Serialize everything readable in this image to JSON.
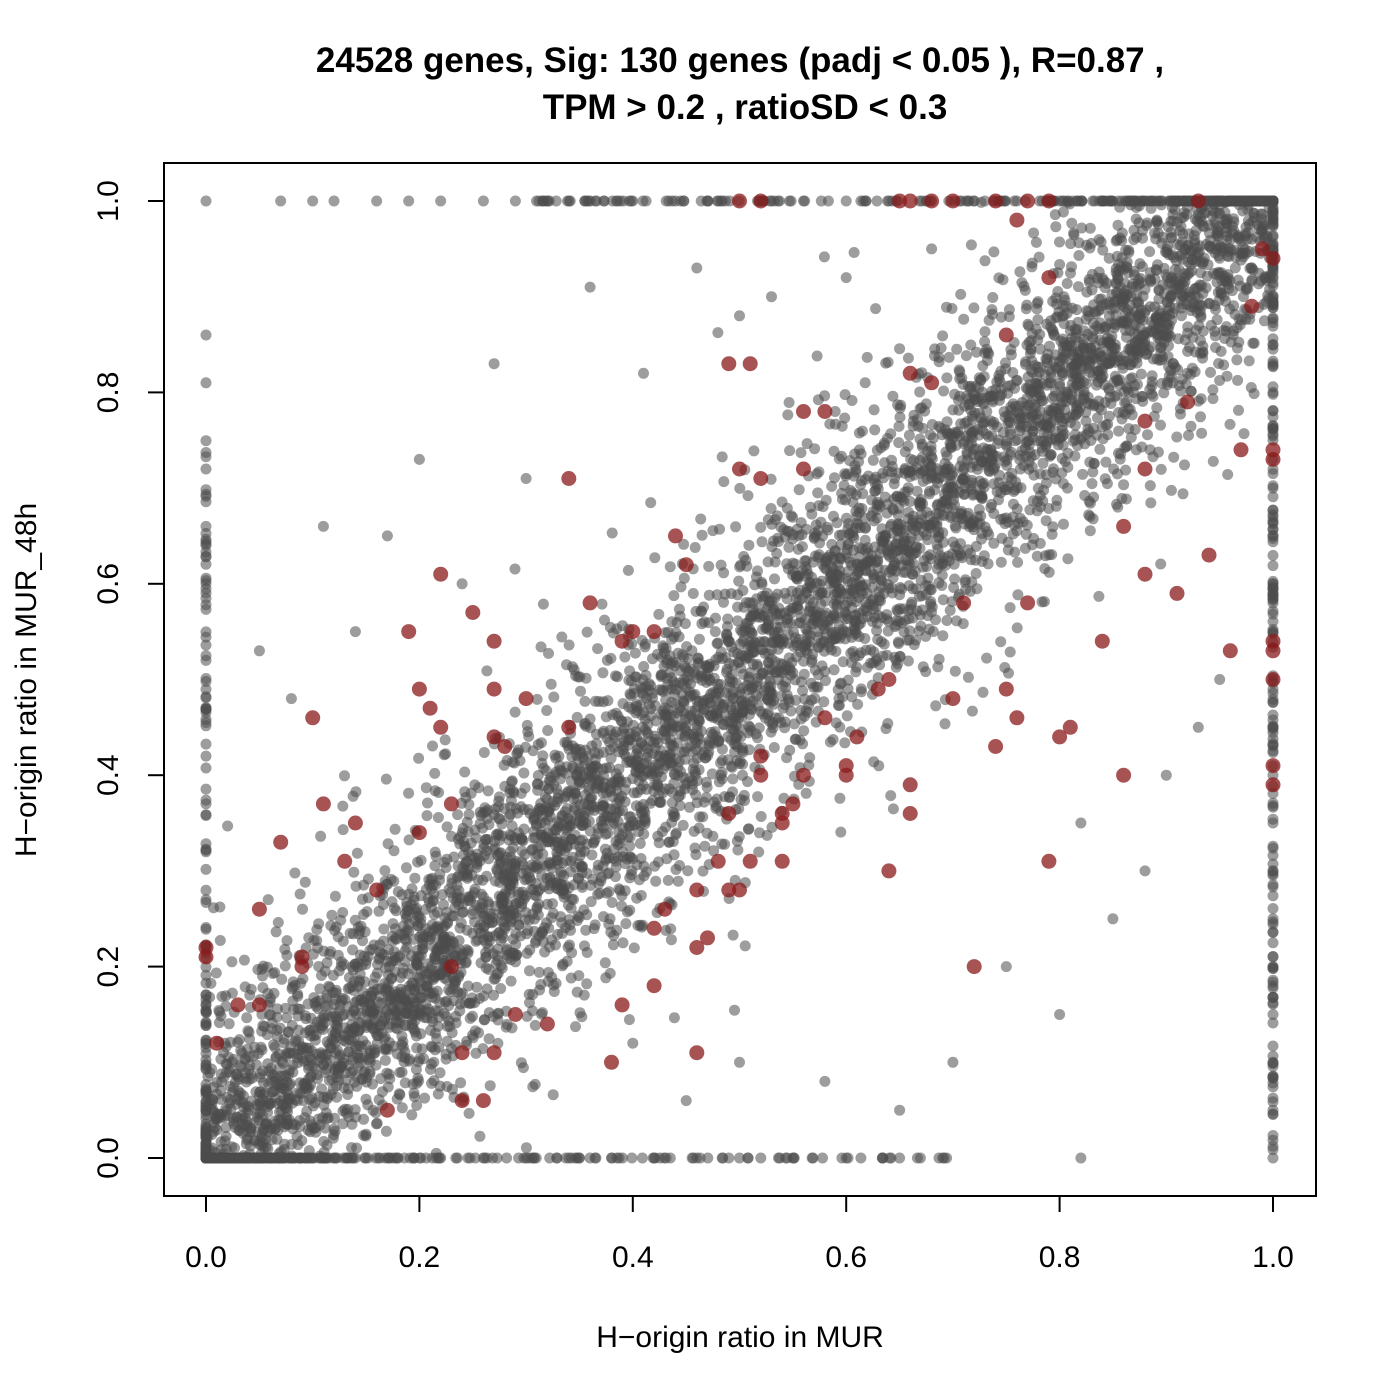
{
  "chart_data": {
    "type": "scatter",
    "title_line1": "24528 genes, Sig: 130 genes (padj < 0.05 ), R=0.87 ,",
    "title_line2": "TPM > 0.2 , ratioSD < 0.3",
    "xlabel": "H−origin ratio in MUR",
    "ylabel": "H−origin ratio in MUR_48h",
    "xlim": [
      0,
      1
    ],
    "ylim": [
      0,
      1
    ],
    "xticks": [
      "0.0",
      "0.2",
      "0.4",
      "0.6",
      "0.8",
      "1.0"
    ],
    "yticks": [
      "0.0",
      "0.2",
      "0.4",
      "0.6",
      "0.8",
      "1.0"
    ],
    "grid": false,
    "legend": "none",
    "colors": {
      "all_genes": "#4d4d4d",
      "significant": "#8b1a1a"
    },
    "series": [
      {
        "values_note": "",
        "points": [
          [
            0.0,
            1.0
          ],
          [
            0.07,
            1.0
          ],
          [
            0.1,
            1.0
          ],
          [
            0.12,
            1.0
          ],
          [
            0.16,
            1.0
          ],
          [
            0.19,
            1.0
          ],
          [
            0.22,
            1.0
          ],
          [
            0.26,
            1.0
          ],
          [
            0.29,
            1.0
          ],
          [
            0.32,
            1.0
          ],
          [
            0.36,
            1.0
          ],
          [
            0.4,
            1.0
          ],
          [
            0.44,
            1.0
          ],
          [
            0.48,
            1.0
          ],
          [
            0.52,
            1.0
          ],
          [
            0.56,
            1.0
          ],
          [
            0.6,
            1.0
          ],
          [
            0.64,
            1.0
          ],
          [
            0.68,
            1.0
          ],
          [
            0.72,
            1.0
          ],
          [
            0.76,
            1.0
          ],
          [
            0.8,
            1.0
          ],
          [
            0.84,
            1.0
          ],
          [
            0.88,
            1.0
          ],
          [
            0.92,
            1.0
          ],
          [
            0.96,
            1.0
          ],
          [
            0.0,
            0.0
          ],
          [
            0.06,
            0.0
          ],
          [
            0.1,
            0.0
          ],
          [
            0.14,
            0.0
          ],
          [
            0.18,
            0.0
          ],
          [
            0.22,
            0.0
          ],
          [
            0.26,
            0.0
          ],
          [
            0.3,
            0.0
          ],
          [
            0.34,
            0.0
          ],
          [
            0.38,
            0.0
          ],
          [
            0.42,
            0.0
          ],
          [
            0.46,
            0.0
          ],
          [
            0.5,
            0.0
          ],
          [
            0.55,
            0.0
          ],
          [
            0.6,
            0.0
          ],
          [
            0.65,
            0.0
          ],
          [
            0.82,
            0.0
          ],
          [
            1.0,
            0.0
          ],
          [
            0.0,
            0.86
          ],
          [
            0.0,
            0.81
          ],
          [
            0.0,
            0.72
          ],
          [
            0.0,
            0.66
          ],
          [
            0.0,
            0.6
          ],
          [
            0.0,
            0.52
          ],
          [
            0.0,
            0.47
          ],
          [
            0.0,
            0.42
          ],
          [
            0.0,
            0.37
          ],
          [
            0.0,
            0.32
          ],
          [
            0.0,
            0.27
          ],
          [
            0.0,
            0.22
          ],
          [
            0.0,
            0.17
          ],
          [
            0.0,
            0.12
          ],
          [
            0.0,
            0.07
          ],
          [
            1.0,
            0.95
          ],
          [
            1.0,
            0.9
          ],
          [
            1.0,
            0.85
          ],
          [
            1.0,
            0.8
          ],
          [
            1.0,
            0.75
          ],
          [
            1.0,
            0.7
          ],
          [
            1.0,
            0.65
          ],
          [
            1.0,
            0.6
          ],
          [
            1.0,
            0.55
          ],
          [
            1.0,
            0.5
          ],
          [
            1.0,
            0.45
          ],
          [
            1.0,
            0.4
          ],
          [
            1.0,
            0.35
          ],
          [
            1.0,
            0.3
          ],
          [
            1.0,
            0.25
          ],
          [
            1.0,
            0.2
          ],
          [
            1.0,
            0.15
          ],
          [
            1.0,
            0.1
          ],
          [
            1.0,
            0.05
          ],
          [
            0.05,
            0.53
          ],
          [
            0.08,
            0.48
          ],
          [
            0.11,
            0.66
          ],
          [
            0.14,
            0.55
          ],
          [
            0.17,
            0.65
          ],
          [
            0.2,
            0.73
          ],
          [
            0.24,
            0.6
          ],
          [
            0.27,
            0.83
          ],
          [
            0.3,
            0.71
          ],
          [
            0.36,
            0.91
          ],
          [
            0.41,
            0.82
          ],
          [
            0.46,
            0.93
          ],
          [
            0.5,
            0.88
          ],
          [
            0.53,
            0.9
          ],
          [
            0.6,
            0.92
          ],
          [
            0.68,
            0.95
          ],
          [
            0.4,
            0.12
          ],
          [
            0.45,
            0.06
          ],
          [
            0.5,
            0.1
          ],
          [
            0.58,
            0.08
          ],
          [
            0.65,
            0.05
          ],
          [
            0.7,
            0.1
          ],
          [
            0.75,
            0.2
          ],
          [
            0.8,
            0.15
          ],
          [
            0.85,
            0.25
          ],
          [
            0.9,
            0.4
          ],
          [
            0.93,
            0.45
          ],
          [
            0.95,
            0.5
          ],
          [
            0.88,
            0.3
          ],
          [
            0.82,
            0.35
          ]
        ]
      }
    ],
    "significant_points": [
      [
        0.0,
        0.22
      ],
      [
        0.0,
        0.21
      ],
      [
        0.01,
        0.12
      ],
      [
        0.03,
        0.16
      ],
      [
        0.05,
        0.16
      ],
      [
        0.05,
        0.26
      ],
      [
        0.07,
        0.33
      ],
      [
        0.09,
        0.2
      ],
      [
        0.09,
        0.21
      ],
      [
        0.1,
        0.46
      ],
      [
        0.11,
        0.37
      ],
      [
        0.13,
        0.31
      ],
      [
        0.14,
        0.35
      ],
      [
        0.16,
        0.28
      ],
      [
        0.17,
        0.05
      ],
      [
        0.19,
        0.55
      ],
      [
        0.2,
        0.34
      ],
      [
        0.2,
        0.49
      ],
      [
        0.21,
        0.47
      ],
      [
        0.22,
        0.45
      ],
      [
        0.22,
        0.61
      ],
      [
        0.23,
        0.37
      ],
      [
        0.23,
        0.2
      ],
      [
        0.24,
        0.11
      ],
      [
        0.24,
        0.06
      ],
      [
        0.25,
        0.57
      ],
      [
        0.26,
        0.06
      ],
      [
        0.27,
        0.54
      ],
      [
        0.27,
        0.49
      ],
      [
        0.27,
        0.44
      ],
      [
        0.27,
        0.11
      ],
      [
        0.28,
        0.43
      ],
      [
        0.29,
        0.15
      ],
      [
        0.3,
        0.48
      ],
      [
        0.32,
        0.14
      ],
      [
        0.34,
        0.71
      ],
      [
        0.34,
        0.45
      ],
      [
        0.36,
        0.58
      ],
      [
        0.38,
        0.1
      ],
      [
        0.39,
        0.54
      ],
      [
        0.39,
        0.16
      ],
      [
        0.4,
        0.55
      ],
      [
        0.42,
        0.55
      ],
      [
        0.42,
        0.24
      ],
      [
        0.42,
        0.18
      ],
      [
        0.43,
        0.26
      ],
      [
        0.44,
        0.65
      ],
      [
        0.45,
        0.62
      ],
      [
        0.46,
        0.28
      ],
      [
        0.46,
        0.22
      ],
      [
        0.46,
        0.11
      ],
      [
        0.47,
        0.23
      ],
      [
        0.48,
        0.31
      ],
      [
        0.49,
        0.28
      ],
      [
        0.49,
        0.36
      ],
      [
        0.49,
        0.83
      ],
      [
        0.5,
        0.72
      ],
      [
        0.5,
        0.28
      ],
      [
        0.51,
        0.83
      ],
      [
        0.51,
        0.31
      ],
      [
        0.52,
        0.71
      ],
      [
        0.52,
        0.4
      ],
      [
        0.52,
        0.42
      ],
      [
        0.54,
        0.36
      ],
      [
        0.54,
        0.35
      ],
      [
        0.54,
        0.31
      ],
      [
        0.55,
        0.37
      ],
      [
        0.56,
        0.4
      ],
      [
        0.56,
        0.72
      ],
      [
        0.56,
        0.78
      ],
      [
        0.58,
        0.78
      ],
      [
        0.58,
        0.46
      ],
      [
        0.6,
        0.41
      ],
      [
        0.6,
        0.4
      ],
      [
        0.61,
        0.44
      ],
      [
        0.63,
        0.49
      ],
      [
        0.64,
        0.3
      ],
      [
        0.64,
        0.5
      ],
      [
        0.66,
        0.39
      ],
      [
        0.66,
        0.82
      ],
      [
        0.66,
        0.36
      ],
      [
        0.68,
        0.81
      ],
      [
        0.7,
        0.48
      ],
      [
        0.71,
        0.58
      ],
      [
        0.72,
        0.2
      ],
      [
        0.74,
        0.43
      ],
      [
        0.75,
        0.86
      ],
      [
        0.75,
        0.49
      ],
      [
        0.76,
        0.46
      ],
      [
        0.77,
        0.58
      ],
      [
        0.79,
        0.92
      ],
      [
        0.79,
        0.31
      ],
      [
        0.8,
        0.44
      ],
      [
        0.81,
        0.45
      ],
      [
        0.84,
        0.54
      ],
      [
        0.86,
        0.66
      ],
      [
        0.86,
        0.4
      ],
      [
        0.88,
        0.77
      ],
      [
        0.88,
        0.72
      ],
      [
        0.88,
        0.61
      ],
      [
        0.91,
        0.59
      ],
      [
        0.92,
        0.79
      ],
      [
        0.94,
        0.63
      ],
      [
        0.96,
        0.53
      ],
      [
        0.97,
        0.74
      ],
      [
        0.98,
        0.89
      ],
      [
        0.99,
        0.95
      ],
      [
        1.0,
        0.94
      ],
      [
        1.0,
        0.74
      ],
      [
        1.0,
        0.73
      ],
      [
        1.0,
        0.54
      ],
      [
        1.0,
        0.53
      ],
      [
        1.0,
        0.5
      ],
      [
        1.0,
        0.41
      ],
      [
        1.0,
        0.39
      ],
      [
        0.5,
        1.0
      ],
      [
        0.52,
        1.0
      ],
      [
        0.65,
        1.0
      ],
      [
        0.66,
        1.0
      ],
      [
        0.68,
        1.0
      ],
      [
        0.7,
        1.0
      ],
      [
        0.74,
        1.0
      ],
      [
        0.77,
        1.0
      ],
      [
        0.79,
        1.0
      ],
      [
        0.93,
        1.0
      ],
      [
        0.76,
        0.98
      ]
    ]
  }
}
